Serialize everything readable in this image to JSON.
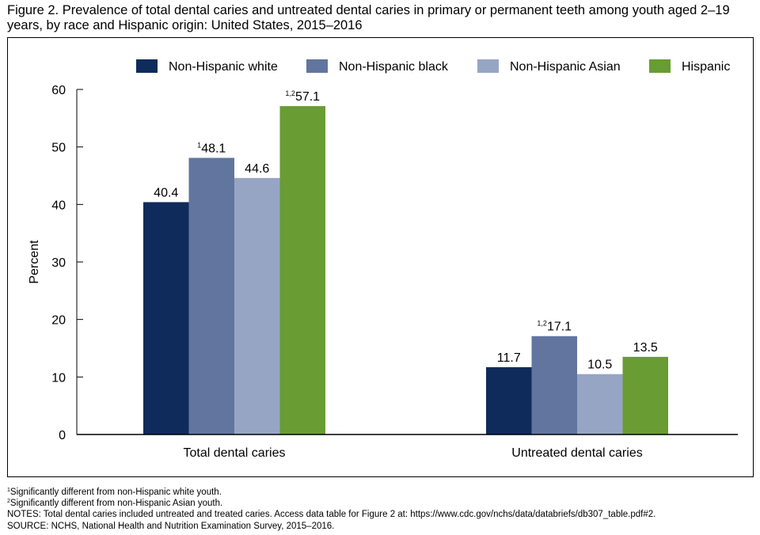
{
  "title": "Figure 2. Prevalence of total dental caries and untreated dental caries in primary or permanent teeth among youth aged 2–19 years, by race and Hispanic origin: United States, 2015–2016",
  "chart_data": {
    "type": "bar",
    "categories": [
      "Total dental caries",
      "Untreated dental caries"
    ],
    "series": [
      {
        "name": "Non-Hispanic white",
        "color": "#0e2b5c",
        "values": [
          40.4,
          11.7
        ],
        "marks": [
          "",
          ""
        ]
      },
      {
        "name": "Non-Hispanic black",
        "color": "#61759f",
        "values": [
          48.1,
          17.1
        ],
        "marks": [
          "1",
          "1,2"
        ]
      },
      {
        "name": "Non-Hispanic Asian",
        "color": "#97a5c5",
        "values": [
          44.6,
          10.5
        ],
        "marks": [
          "",
          ""
        ]
      },
      {
        "name": "Hispanic",
        "color": "#699c33",
        "values": [
          57.1,
          13.5
        ],
        "marks": [
          "1,2",
          ""
        ]
      }
    ],
    "ylabel": "Percent",
    "xlabel": "",
    "ylim": [
      0,
      60
    ],
    "yticks": [
      0,
      10,
      20,
      30,
      40,
      50,
      60
    ],
    "legend_position": "top",
    "grid": false
  },
  "footnotes": [
    {
      "mark": "1",
      "text": "Significantly different from non-Hispanic white youth."
    },
    {
      "mark": "2",
      "text": "Significantly different from non-Hispanic Asian youth."
    },
    {
      "mark": "",
      "text": "NOTES: Total dental caries included untreated and treated caries. Access data table for Figure 2 at: https://www.cdc.gov/nchs/data/databriefs/db307_table.pdf#2."
    },
    {
      "mark": "",
      "text": "SOURCE: NCHS, National Health and Nutrition Examination Survey, 2015–2016."
    }
  ]
}
